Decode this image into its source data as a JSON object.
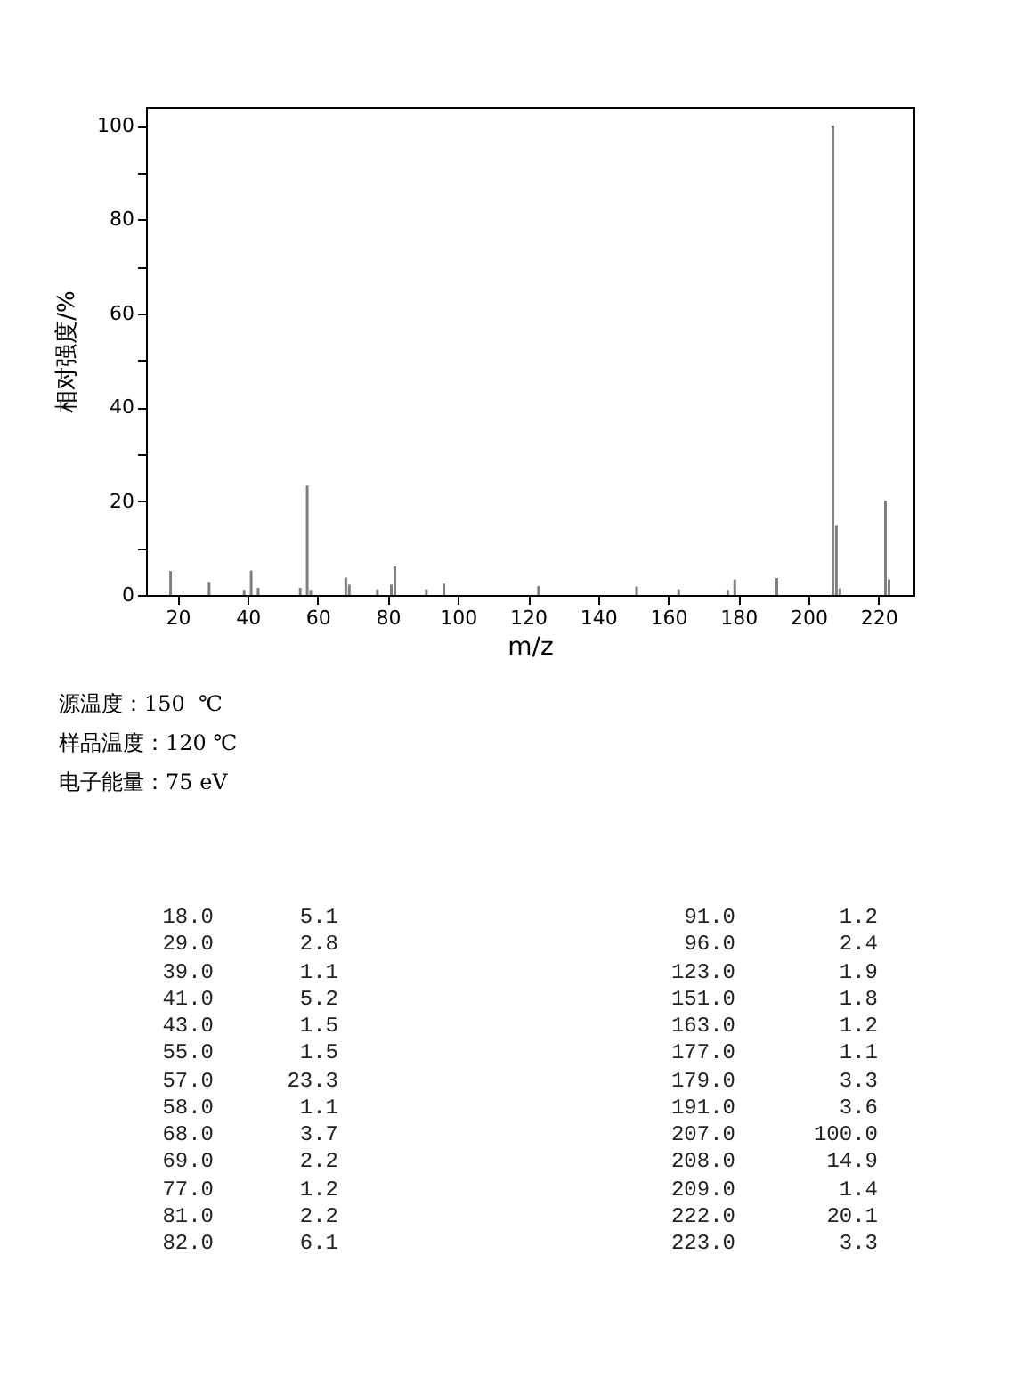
{
  "chart_data": [
    {
      "type": "bar",
      "xlabel": "m/z",
      "ylabel": "相对强度/%",
      "x": [
        18,
        29,
        39,
        41,
        43,
        55,
        57,
        58,
        68,
        69,
        77,
        81,
        82,
        91,
        96,
        123,
        151,
        163,
        177,
        179,
        191,
        207,
        208,
        209,
        222,
        223
      ],
      "values": [
        5.1,
        2.8,
        1.1,
        5.2,
        1.5,
        1.5,
        23.3,
        1.1,
        3.7,
        2.2,
        1.2,
        2.2,
        6.1,
        1.2,
        2.4,
        1.9,
        1.8,
        1.2,
        1.1,
        3.3,
        3.6,
        100.0,
        14.9,
        1.4,
        20.1,
        3.3
      ],
      "color": "#7f7f7f",
      "xlim": [
        11,
        230
      ],
      "xticks": [
        20,
        40,
        60,
        80,
        100,
        120,
        140,
        160,
        180,
        200,
        220
      ],
      "ylim": [
        0,
        104
      ],
      "yticks": [
        0,
        {
          "value": 10,
          "label": null
        },
        20,
        {
          "value": 30,
          "label": null
        },
        40,
        {
          "value": 50,
          "label": null
        },
        60,
        {
          "value": 70,
          "label": null
        },
        80,
        {
          "value": 90,
          "label": null
        },
        100
      ],
      "grid": false,
      "annotations": [
        "源温度：150  ℃",
        "样品温度：120 ℃",
        "电子能量：75 eV"
      ]
    },
    {
      "type": "other",
      "annotations": [
        "18.0",
        "5.1",
        "91.0",
        "1.2",
        "29.0",
        "2.8",
        "96.0",
        "2.4",
        "39.0",
        "1.1",
        "123.0",
        "1.9",
        "41.0",
        "5.2",
        "151.0",
        "1.8",
        "43.0",
        "1.5",
        "163.0",
        "1.2",
        "55.0",
        "1.5",
        "177.0",
        "1.1",
        "57.0",
        "23.3",
        "179.0",
        "3.3",
        "58.0",
        "1.1",
        "191.0",
        "3.6",
        "68.0",
        "3.7",
        "207.0",
        "100.0",
        "69.0",
        "2.2",
        "208.0",
        "14.9",
        "77.0",
        "1.2",
        "209.0",
        "1.4",
        "81.0",
        "2.2",
        "222.0",
        "20.1",
        "82.0",
        "6.1",
        "223.0",
        "3.3"
      ]
    }
  ]
}
